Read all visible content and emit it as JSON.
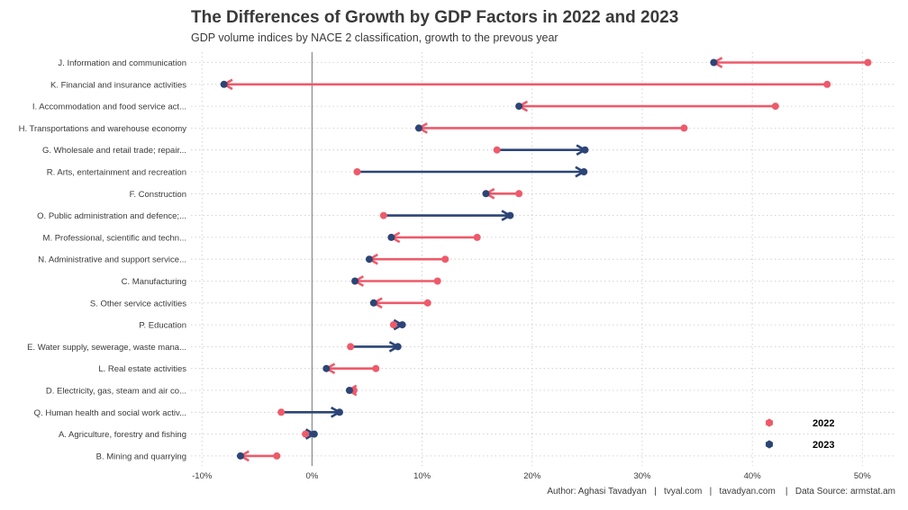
{
  "title": "The Differences of Growth by GDP Factors in 2022 and 2023",
  "subtitle": "GDP volume indices by NACE 2 classification, growth to the prevous year",
  "caption": "Author: Aghasi Tavadyan   |   tvyal.com   |   tavadyan.com    |   Data Source: armstat.am",
  "colors": {
    "y2022": "#ee5a6a",
    "y2023": "#2c4576",
    "grid": "#c8c8c8",
    "zero": "#8a8a8a"
  },
  "chart_data": {
    "type": "dumbbell",
    "title": "The Differences of Growth by GDP Factors in 2022 and 2023",
    "subtitle": "GDP volume indices by NACE 2 classification, growth to the prevous year",
    "xlim": [
      -0.11,
      0.53
    ],
    "x_ticks": [
      -0.1,
      0,
      0.1,
      0.2,
      0.3,
      0.4,
      0.5
    ],
    "x_tick_labels": [
      "-10%",
      "0%",
      "10%",
      "20%",
      "30%",
      "40%",
      "50%"
    ],
    "grid": true,
    "legend": {
      "position": "bottom-right",
      "entries": [
        "2022",
        "2023"
      ]
    },
    "categories": [
      "J. Information and communication",
      "K. Financial and insurance activities",
      "I. Accommodation and food service act...",
      "H. Transportations and warehouse economy",
      "G. Wholesale and retail trade; repair...",
      "R. Arts, entertainment and recreation",
      "F. Construction",
      "O. Public administration and defence;...",
      "M. Professional, scientific and techn...",
      "N. Administrative and support service...",
      "C. Manufacturing",
      "S. Other service activities",
      "P. Education",
      "E. Water supply, sewerage, waste mana...",
      "L. Real estate activities",
      "D. Electricity, gas, steam and air co...",
      "Q. Human health and social work activ...",
      "A. Agriculture, forestry and fishing",
      "B. Mining and quarrying"
    ],
    "series": [
      {
        "name": "2022",
        "values": [
          0.505,
          0.468,
          0.421,
          0.338,
          0.168,
          0.041,
          0.188,
          0.065,
          0.15,
          0.121,
          0.114,
          0.105,
          0.074,
          0.035,
          0.058,
          0.038,
          -0.028,
          -0.006,
          -0.032
        ]
      },
      {
        "name": "2023",
        "values": [
          0.365,
          -0.08,
          0.188,
          0.097,
          0.248,
          0.247,
          0.158,
          0.18,
          0.072,
          0.052,
          0.039,
          0.056,
          0.082,
          0.078,
          0.013,
          0.034,
          0.025,
          0.002,
          -0.065
        ]
      }
    ]
  }
}
